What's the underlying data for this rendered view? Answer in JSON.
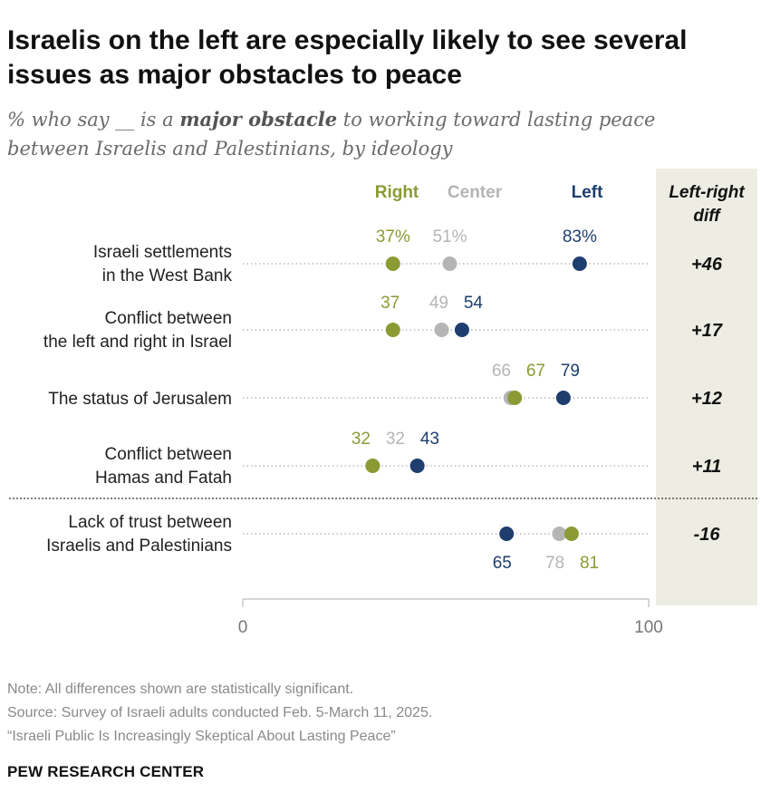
{
  "title": "Israelis on the left are especially likely to see several issues as major obstacles to peace",
  "subtitle": {
    "pre": "% who say __ is a ",
    "emphasis": "major obstacle",
    "post": " to working toward lasting peace between Israelis and Palestinians, by ideology"
  },
  "colors": {
    "right": "#8c9a34",
    "center": "#b5b5b5",
    "left": "#1d3e6e",
    "diff_bg": "#ededE4"
  },
  "legend": {
    "right": "Right",
    "center": "Center",
    "left": "Left"
  },
  "diff_header": [
    "Left-right",
    "diff"
  ],
  "chart_data": {
    "type": "dot-plot",
    "title": "Israelis on the left are especially likely to see several issues as major obstacles to peace",
    "xlim": [
      0,
      100
    ],
    "x_ticks": [
      "0",
      "100"
    ],
    "series_names": [
      "Right",
      "Center",
      "Left"
    ],
    "rows": [
      {
        "label": [
          "Israeli settlements",
          "in the West Bank"
        ],
        "right": 37,
        "center": 51,
        "left": 83,
        "labels": [
          "37%",
          "51%",
          "83%"
        ],
        "diff": "+46"
      },
      {
        "label": [
          "Conflict between",
          "the left and right in Israel"
        ],
        "right": 37,
        "center": 49,
        "left": 54,
        "labels": [
          "37",
          "49",
          "54"
        ],
        "diff": "+17"
      },
      {
        "label": [
          "The status of Jerusalem"
        ],
        "right": 67,
        "center": 66,
        "left": 79,
        "labels": [
          "67",
          "66",
          "79"
        ],
        "diff": "+12"
      },
      {
        "label": [
          "Conflict between",
          "Hamas and Fatah"
        ],
        "right": 32,
        "center": 32,
        "left": 43,
        "labels": [
          "32",
          "32",
          "43"
        ],
        "diff": "+11"
      },
      {
        "label": [
          "Lack of trust between",
          "Israelis and Palestinians"
        ],
        "right": 81,
        "center": 78,
        "left": 65,
        "labels": [
          "81",
          "78",
          "65"
        ],
        "diff": "-16"
      }
    ]
  },
  "notes": [
    "Note: All differences shown are statistically significant.",
    "Source: Survey of Israeli adults conducted Feb. 5-March 11, 2025.",
    "“Israeli Public Is Increasingly Skeptical About Lasting Peace”"
  ],
  "brand": "PEW RESEARCH CENTER"
}
